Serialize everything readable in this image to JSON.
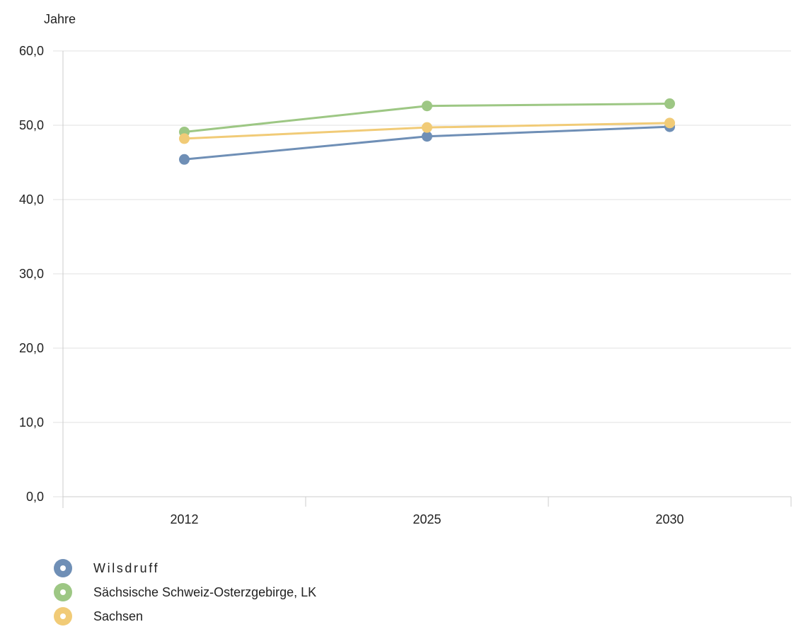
{
  "chart_data": {
    "type": "line",
    "ylabel": "Jahre",
    "x": [
      "2012",
      "2025",
      "2030"
    ],
    "ylim": [
      0,
      60
    ],
    "yticks": [
      "0,0",
      "10,0",
      "20,0",
      "30,0",
      "40,0",
      "50,0",
      "60,0"
    ],
    "grid": true,
    "legend_position": "bottom-left",
    "series": [
      {
        "name": "Wilsdruff",
        "color": "#6f8fb6",
        "values": [
          45.4,
          48.5,
          49.8
        ]
      },
      {
        "name": "Sächsische Schweiz-Osterzgebirge, LK",
        "color": "#9dc784",
        "values": [
          49.1,
          52.6,
          52.9
        ]
      },
      {
        "name": "Sachsen",
        "color": "#f1cb77",
        "values": [
          48.2,
          49.7,
          50.3
        ]
      }
    ]
  }
}
